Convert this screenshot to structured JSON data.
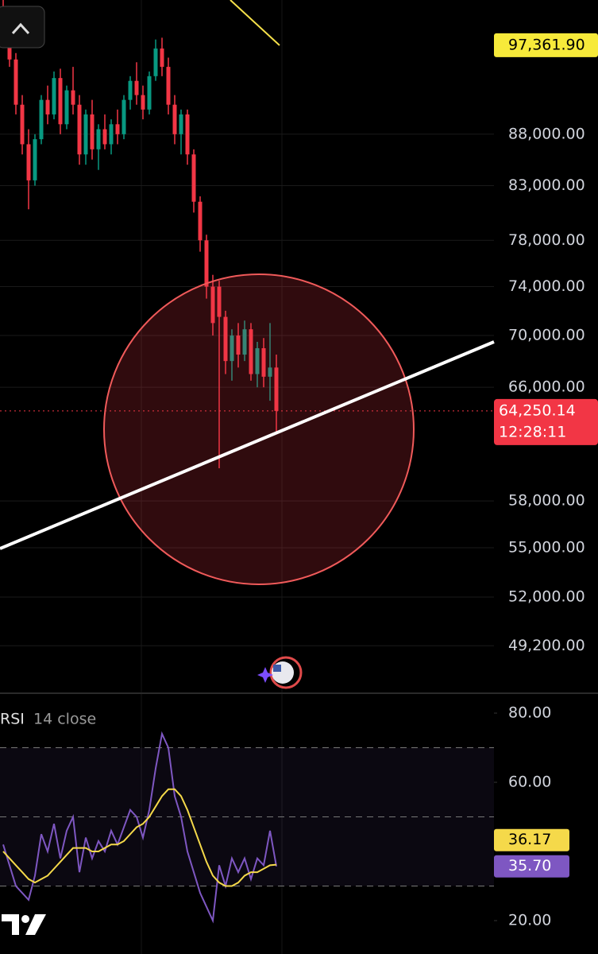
{
  "chart_data": [
    {
      "type": "candlestick",
      "log_scale": true,
      "grid": true,
      "up_color": "#089981",
      "down_color": "#f23645",
      "ylim": [
        46700,
        102500
      ],
      "yticks": [
        {
          "value": 88000,
          "label": "88,000.00"
        },
        {
          "value": 83000,
          "label": "83,000.00"
        },
        {
          "value": 78000,
          "label": "78,000.00"
        },
        {
          "value": 74000,
          "label": "74,000.00"
        },
        {
          "value": 70000,
          "label": "70,000.00"
        },
        {
          "value": 66000,
          "label": "66,000.00"
        },
        {
          "value": 58000,
          "label": "58,000.00"
        },
        {
          "value": 55000,
          "label": "55,000.00"
        },
        {
          "value": 52000,
          "label": "52,000.00"
        },
        {
          "value": 49200,
          "label": "49,200.00"
        }
      ],
      "open": [
        100000,
        98500,
        95800,
        91000,
        87000,
        83500,
        87500,
        91500,
        90000,
        93800,
        89000,
        92500,
        91000,
        86000,
        90000,
        86500,
        88500,
        87000,
        89000,
        88000,
        91500,
        93500,
        92000,
        90500,
        94000,
        97000,
        95000,
        91000,
        88000,
        90000,
        86000,
        81500,
        78000,
        74000,
        74000,
        71500,
        68000,
        70000,
        68500,
        70500,
        67000,
        69000,
        66800,
        67500
      ],
      "high": [
        103000,
        99500,
        96500,
        92000,
        88500,
        88000,
        92000,
        93000,
        94500,
        94800,
        93000,
        95000,
        92000,
        90500,
        91500,
        89000,
        90000,
        89500,
        90500,
        92000,
        94000,
        95500,
        93000,
        94500,
        98000,
        98200,
        96000,
        92000,
        90500,
        90500,
        86500,
        82000,
        78500,
        75000,
        74500,
        72000,
        70500,
        71000,
        71200,
        71000,
        69500,
        69800,
        71000,
        68500
      ],
      "low": [
        98000,
        95000,
        90000,
        86000,
        80800,
        83000,
        87000,
        89000,
        89500,
        88000,
        88500,
        90000,
        85000,
        85000,
        85500,
        84500,
        86500,
        86000,
        87000,
        87500,
        90500,
        91000,
        89500,
        90000,
        93500,
        94000,
        90000,
        87000,
        86000,
        85000,
        80500,
        77000,
        73000,
        70000,
        60200,
        67000,
        66500,
        67500,
        68000,
        66500,
        66000,
        66000,
        65000,
        62600
      ],
      "close": [
        98500,
        95800,
        91000,
        87000,
        83500,
        87500,
        91500,
        90000,
        93800,
        89000,
        92500,
        91000,
        86000,
        90000,
        86500,
        88500,
        87000,
        89000,
        88000,
        91500,
        93500,
        92000,
        90500,
        94000,
        97000,
        95000,
        91000,
        88000,
        90000,
        86000,
        81500,
        78000,
        74000,
        71000,
        71500,
        68000,
        70000,
        68500,
        70500,
        67000,
        69000,
        66800,
        67500,
        64250.14
      ],
      "high_label": {
        "value": 97361.9,
        "label": "97,361.90"
      },
      "last_price": {
        "value": 64250.14,
        "label": "64,250.14"
      },
      "countdown": "12:28:11"
    },
    {
      "type": "line",
      "title": "RSI",
      "subtitle": "14 close",
      "ylim": [
        12,
        84
      ],
      "yticks": [
        {
          "value": 80,
          "label": "80.00"
        },
        {
          "value": 60,
          "label": "60.00"
        },
        {
          "value": 20,
          "label": "20.00"
        }
      ],
      "levels": [
        70,
        50,
        30
      ],
      "series": [
        {
          "color": "#7e57c2",
          "values": [
            42,
            36,
            30,
            28,
            26,
            33,
            45,
            40,
            48,
            38,
            46,
            50,
            34,
            44,
            38,
            43,
            40,
            46,
            42,
            47,
            52,
            50,
            44,
            52,
            64,
            74,
            70,
            56,
            50,
            40,
            34,
            28,
            24,
            20,
            36,
            30,
            38,
            34,
            38,
            32,
            38,
            36,
            46,
            35.7
          ],
          "last_label": "35.70"
        },
        {
          "color": "#f5d94a",
          "values": [
            40,
            38,
            36,
            34,
            32,
            31,
            32,
            33,
            35,
            37,
            39,
            41,
            41,
            41,
            40,
            40,
            41,
            42,
            42,
            43,
            45,
            47,
            48,
            50,
            53,
            56,
            58,
            58,
            56,
            52,
            47,
            42,
            37,
            33,
            31,
            30,
            30,
            31,
            33,
            34,
            34,
            35,
            36,
            36.17
          ],
          "last_label": "36.17"
        }
      ]
    }
  ]
}
